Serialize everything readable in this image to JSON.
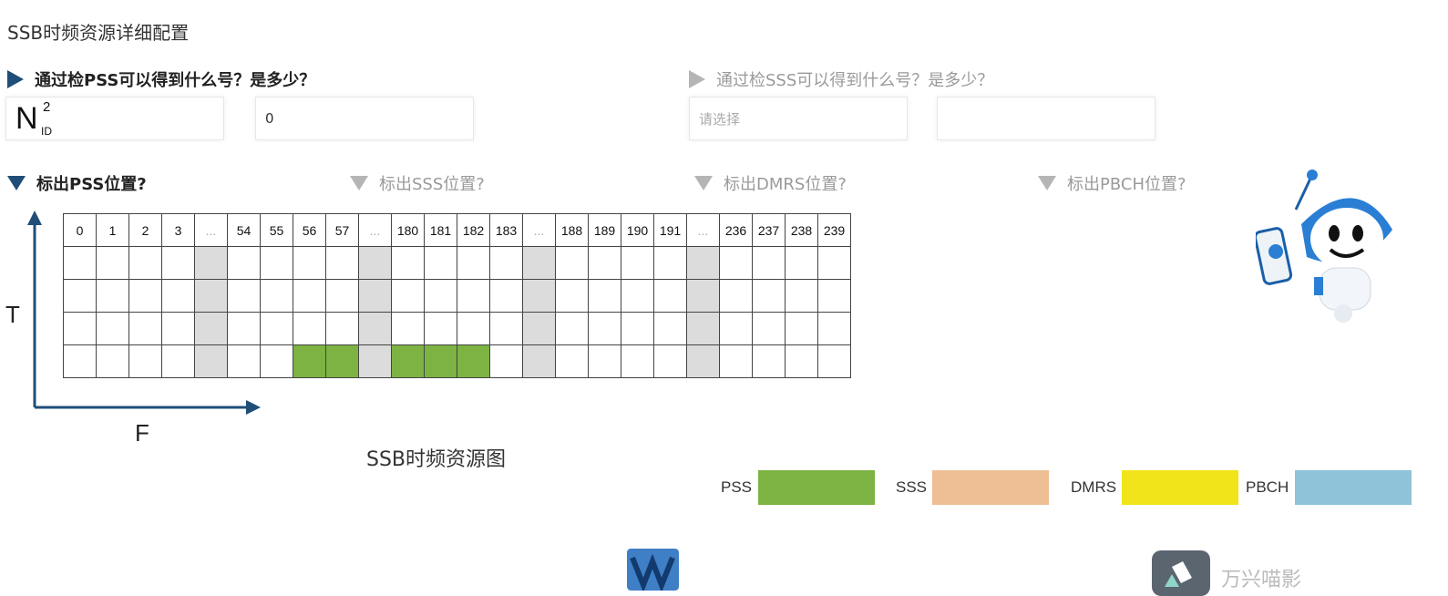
{
  "page_title": "SSB时频资源详细配置",
  "q_pss": {
    "label": "通过检PSS可以得到什么号？是多少？",
    "symbol": "N",
    "symbol_sup": "2",
    "symbol_sub": "ID",
    "value": "0"
  },
  "q_sss": {
    "label": "通过检SSS可以得到什么号？是多少？",
    "select_placeholder": "请选择",
    "value": ""
  },
  "mark_sections": [
    {
      "label": "标出PSS位置?"
    },
    {
      "label": "标出SSS位置?"
    },
    {
      "label": "标出DMRS位置?"
    },
    {
      "label": "标出PBCH位置?"
    }
  ],
  "grid": {
    "columns": [
      "0",
      "1",
      "2",
      "3",
      "...",
      "54",
      "55",
      "56",
      "57",
      "...",
      "180",
      "181",
      "182",
      "183",
      "...",
      "188",
      "189",
      "190",
      "191",
      "...",
      "236",
      "237",
      "238",
      "239"
    ],
    "gap_columns": [
      4,
      9,
      14,
      19
    ],
    "pss_row": 3,
    "pss_columns": [
      7,
      8,
      10,
      11,
      12
    ],
    "rows": 4
  },
  "axis": {
    "t_label": "T",
    "f_label": "F"
  },
  "caption": "SSB时频资源图",
  "legend": [
    {
      "label": "PSS",
      "color": "#7cb342"
    },
    {
      "label": "SSS",
      "color": "#eebf95"
    },
    {
      "label": "DMRS",
      "color": "#f2e41a"
    },
    {
      "label": "PBCH",
      "color": "#8ec3d9"
    }
  ],
  "colors": {
    "accent": "#1f4e79",
    "pss": "#7cb342"
  },
  "watermark": "万兴喵影"
}
